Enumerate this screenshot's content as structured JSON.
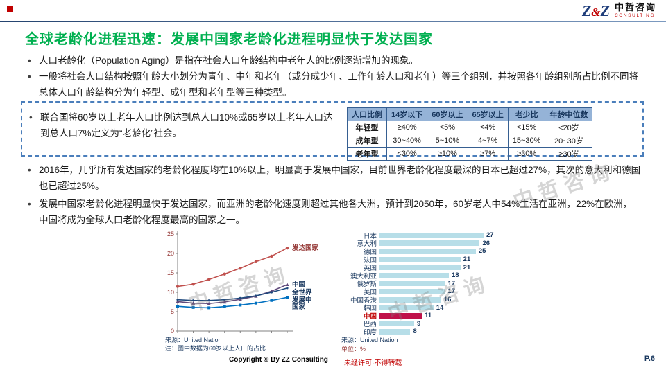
{
  "slide": {
    "title": "全球老龄化进程迅速：发展中国家老龄化进程明显快于发达国家",
    "page": "P.6",
    "copyright": "Copyright © By ZZ Consulting",
    "no_reproduction": "未经许可·不得转载",
    "watermark": "中哲咨询",
    "title_color": "#00B050"
  },
  "logo": {
    "z1": "Z",
    "amp": "&",
    "z2": "Z",
    "name": "中哲咨询",
    "subtitle": "CONSULTING"
  },
  "bullets": {
    "b1": "人口老龄化（Population Aging）是指在社会人口年龄结构中老年人的比例逐渐增加的现象。",
    "b2": "一般将社会人口结构按照年龄大小划分为青年、中年和老年（或分成少年、工作年龄人口和老年）等三个组别，并按照各年龄组别所占比例不同将总体人口年龄结构分为年轻型、成年型和老年型等三种类型。",
    "b3": "联合国将60岁以上老年人口比例达到总人口10%或65岁以上老年人口达到总人口7%定义为“老龄化”社会。",
    "b4": "2016年，几乎所有发达国家的老龄化程度均在10%以上，明显高于发展中国家，目前世界老龄化程度最深的日本已超过27%，其次的意大利和德国也已超过25%。",
    "b5": "发展中国家老龄化进程明显快于发达国家，而亚洲的老龄化速度则超过其他各大洲，预计到2050年，60岁老人中54%生活在亚洲，22%在欧洲，中国将成为全球人口老龄化程度最高的国家之一。"
  },
  "table": {
    "headers": [
      "人口比例",
      "14岁以下",
      "60岁以上",
      "65岁以上",
      "老少比",
      "年龄中位数"
    ],
    "rows": [
      [
        "年轻型",
        "≥40%",
        "<5%",
        "<4%",
        "<15%",
        "<20岁"
      ],
      [
        "成年型",
        "30~40%",
        "5~10%",
        "4~7%",
        "15~30%",
        "20~30岁"
      ],
      [
        "老年型",
        "<30%",
        "≥10%",
        "≥7%",
        "≥30%",
        "≥30岁"
      ]
    ],
    "header_bg": "#95B3D7",
    "border_color": "#365F91"
  },
  "chart_data": [
    {
      "type": "line",
      "title": "",
      "xlabel": "",
      "ylabel": "",
      "ylim": [
        0,
        25
      ],
      "yticks": [
        0,
        5,
        10,
        15,
        20,
        25
      ],
      "grid": false,
      "legend_position": "right-of-lines",
      "series": [
        {
          "name": "发达国家",
          "color": "#C0504D",
          "marker": "circle",
          "values": [
            11.5,
            12.1,
            13.3,
            14.7,
            16.2,
            17.9,
            19.3,
            21.4
          ],
          "label_lines": [
            "发达国家"
          ]
        },
        {
          "name": "中国",
          "color": "#604A7B",
          "marker": "triangle",
          "values": [
            7.6,
            7.2,
            7.1,
            7.5,
            8.2,
            9.0,
            10.3,
            12.0
          ],
          "label_lines": [
            "中国"
          ]
        },
        {
          "name": "全世界",
          "color": "#1F497D",
          "marker": "dot",
          "values": [
            8.1,
            7.9,
            7.9,
            8.1,
            8.5,
            9.1,
            10.0,
            11.1
          ],
          "label_lines": [
            "全世界"
          ]
        },
        {
          "name": "发展中国家",
          "color": "#0070C0",
          "marker": "square",
          "values": [
            6.4,
            6.1,
            6.0,
            6.3,
            6.7,
            7.2,
            7.9,
            8.7
          ],
          "label_lines": [
            "发展中",
            "国家"
          ]
        }
      ],
      "source": "来源：United Nation",
      "note": "注：图中数据为60岁以上人口的占比"
    },
    {
      "type": "bar",
      "orientation": "horizontal",
      "categories": [
        "日本",
        "意大利",
        "德国",
        "法国",
        "英国",
        "澳大利亚",
        "俄罗斯",
        "美国",
        "中国香港",
        "韩国",
        "中国",
        "巴西",
        "印度"
      ],
      "values": [
        27,
        26,
        25,
        21,
        21,
        18,
        17,
        17,
        16,
        14,
        11,
        9,
        8
      ],
      "bar_color": "#B7DEE8",
      "highlight_category": "中国",
      "highlight_color": "#C0114A",
      "source": "来源：United Nation",
      "unit": "单位：%"
    }
  ]
}
